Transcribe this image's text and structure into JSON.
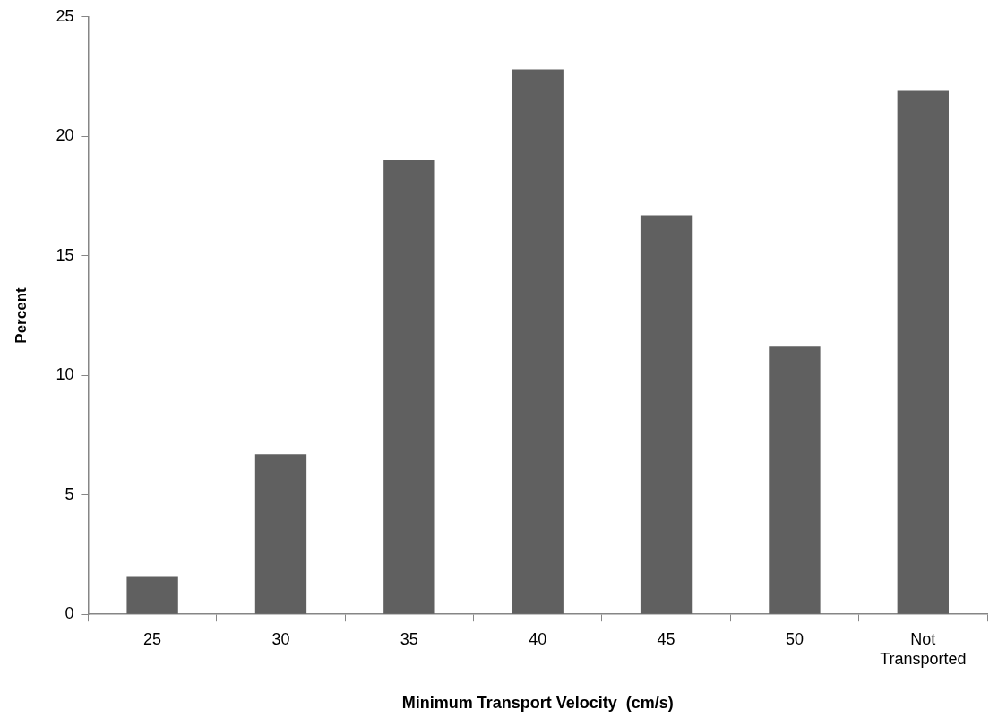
{
  "chart_data": {
    "type": "bar",
    "xlabel": "Minimum Transport Velocity  (cm/s)",
    "ylabel": "Percent",
    "categories": [
      "25",
      "30",
      "35",
      "40",
      "45",
      "50",
      "Not Transported"
    ],
    "values": [
      1.6,
      6.7,
      19.0,
      22.8,
      16.7,
      11.2,
      21.9
    ],
    "color": "#606060",
    "ylim": [
      0,
      25
    ],
    "yticks": [
      0,
      5,
      10,
      15,
      20,
      25
    ],
    "grid": false,
    "legend": false
  }
}
